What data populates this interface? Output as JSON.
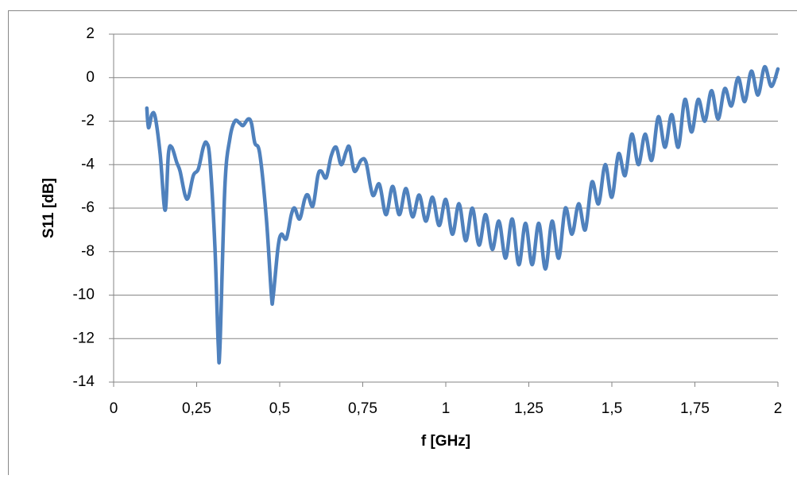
{
  "chart_data": {
    "type": "line",
    "xlabel": "f [GHz]",
    "ylabel": "S11 [dB]",
    "xlim": [
      0,
      2
    ],
    "ylim": [
      -14,
      2
    ],
    "xticks": [
      0,
      {
        "value": 0.25,
        "label": "0,25"
      },
      {
        "value": 0.5,
        "label": "0,5"
      },
      {
        "value": 0.75,
        "label": "0,75"
      },
      1,
      {
        "value": 1.25,
        "label": "1,25"
      },
      {
        "value": 1.5,
        "label": "1,5"
      },
      {
        "value": 1.75,
        "label": "1,75"
      },
      2
    ],
    "yticks": [
      2,
      0,
      -2,
      -4,
      -6,
      -8,
      -10,
      -12,
      -14
    ],
    "grid": true,
    "series": [
      {
        "color": "#4f81bd",
        "x": [
          0.1,
          0.105,
          0.115,
          0.125,
          0.14,
          0.155,
          0.165,
          0.175,
          0.19,
          0.2,
          0.215,
          0.225,
          0.24,
          0.255,
          0.27,
          0.28,
          0.29,
          0.305,
          0.315,
          0.32,
          0.335,
          0.35,
          0.365,
          0.38,
          0.39,
          0.405,
          0.415,
          0.425,
          0.44,
          0.46,
          0.475,
          0.48,
          0.495,
          0.505,
          0.52,
          0.535,
          0.545,
          0.56,
          0.575,
          0.585,
          0.6,
          0.615,
          0.625,
          0.64,
          0.655,
          0.67,
          0.685,
          0.7,
          0.71,
          0.725,
          0.745,
          0.76,
          0.78,
          0.8,
          0.82,
          0.84,
          0.86,
          0.88,
          0.9,
          0.92,
          0.94,
          0.96,
          0.98,
          1.0,
          1.02,
          1.04,
          1.06,
          1.08,
          1.1,
          1.12,
          1.14,
          1.16,
          1.18,
          1.2,
          1.22,
          1.24,
          1.26,
          1.28,
          1.3,
          1.32,
          1.34,
          1.36,
          1.38,
          1.4,
          1.42,
          1.44,
          1.46,
          1.48,
          1.5,
          1.52,
          1.54,
          1.56,
          1.58,
          1.6,
          1.62,
          1.64,
          1.66,
          1.68,
          1.7,
          1.72,
          1.74,
          1.76,
          1.78,
          1.8,
          1.82,
          1.84,
          1.86,
          1.88,
          1.9,
          1.92,
          1.94,
          1.96,
          1.98,
          2.0
        ],
        "values": [
          -1.4,
          -2.3,
          -1.7,
          -1.8,
          -3.5,
          -6.1,
          -3.5,
          -3.2,
          -3.9,
          -4.3,
          -5.4,
          -5.5,
          -4.5,
          -4.2,
          -3.2,
          -3.0,
          -3.8,
          -7.8,
          -12.3,
          -12.4,
          -5.0,
          -2.8,
          -2.0,
          -2.1,
          -2.2,
          -1.9,
          -2.1,
          -3.0,
          -3.5,
          -6.5,
          -10.0,
          -10.1,
          -7.8,
          -7.2,
          -7.4,
          -6.3,
          -6.0,
          -6.5,
          -5.6,
          -5.4,
          -5.9,
          -4.5,
          -4.3,
          -4.6,
          -3.6,
          -3.2,
          -4.0,
          -3.4,
          -3.2,
          -4.3,
          -3.8,
          -3.9,
          -5.4,
          -4.9,
          -6.3,
          -5.0,
          -6.3,
          -5.1,
          -6.4,
          -5.4,
          -6.6,
          -5.5,
          -6.8,
          -5.6,
          -7.2,
          -5.8,
          -7.5,
          -6.0,
          -7.7,
          -6.3,
          -7.9,
          -6.6,
          -8.3,
          -6.5,
          -8.6,
          -6.7,
          -8.6,
          -6.7,
          -8.8,
          -6.6,
          -8.3,
          -6.0,
          -7.2,
          -5.8,
          -7.0,
          -4.8,
          -5.8,
          -4.0,
          -5.5,
          -3.5,
          -4.5,
          -2.6,
          -4.0,
          -2.6,
          -3.8,
          -1.8,
          -3.2,
          -1.7,
          -3.2,
          -1.0,
          -2.5,
          -1.0,
          -2.0,
          -0.6,
          -1.9,
          -0.5,
          -1.3,
          0.0,
          -1.1,
          0.3,
          -0.8,
          0.5,
          -0.4,
          0.4
        ]
      }
    ]
  }
}
